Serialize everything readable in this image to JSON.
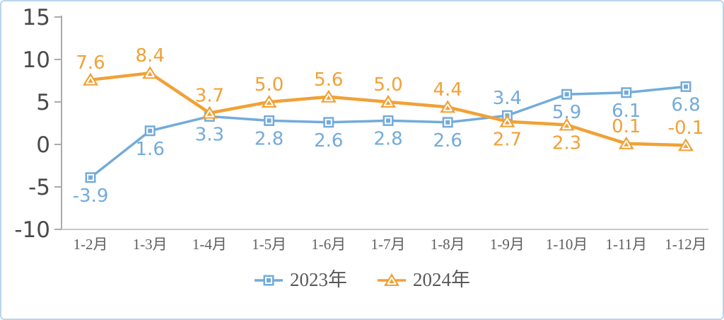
{
  "chart_data": {
    "type": "line",
    "title": "",
    "categories": [
      "1-2月",
      "1-3月",
      "1-4月",
      "1-5月",
      "1-6月",
      "1-7月",
      "1-8月",
      "1-9月",
      "1-10月",
      "1-11月",
      "1-12月"
    ],
    "series": [
      {
        "name": "2023年",
        "marker": "square",
        "color": "#73ABDB",
        "values": [
          -3.9,
          1.6,
          3.3,
          2.8,
          2.6,
          2.8,
          2.6,
          3.4,
          5.9,
          6.1,
          6.8
        ],
        "label_positions": [
          "below",
          "below",
          "below",
          "below",
          "below",
          "below",
          "below",
          "above",
          "below",
          "below",
          "below"
        ]
      },
      {
        "name": "2024年",
        "marker": "triangle",
        "color": "#F1A136",
        "values": [
          7.6,
          8.4,
          3.7,
          5.0,
          5.6,
          5.0,
          4.4,
          2.7,
          2.3,
          0.1,
          -0.1
        ],
        "label_positions": [
          "above",
          "above",
          "above",
          "above",
          "above",
          "above",
          "above",
          "below",
          "below",
          "above",
          "above"
        ]
      }
    ],
    "y_axis": {
      "min": -10,
      "max": 15,
      "step": 5,
      "ticks": [
        15,
        10,
        5,
        0,
        -5,
        -10
      ]
    },
    "value_label_decimals": 1,
    "legend_position": "bottom",
    "grid": false,
    "colors": {
      "axis_line": "#ABABAB",
      "x_axis_line": "#C9C9C9",
      "y_tick_label": "#4A4A4A",
      "x_tick_label": "#5F5F5F",
      "legend_text": "#595959",
      "frame_border": "#B9D5EE"
    }
  },
  "legend": {
    "items": [
      {
        "label": "2023年"
      },
      {
        "label": "2024年"
      }
    ]
  }
}
